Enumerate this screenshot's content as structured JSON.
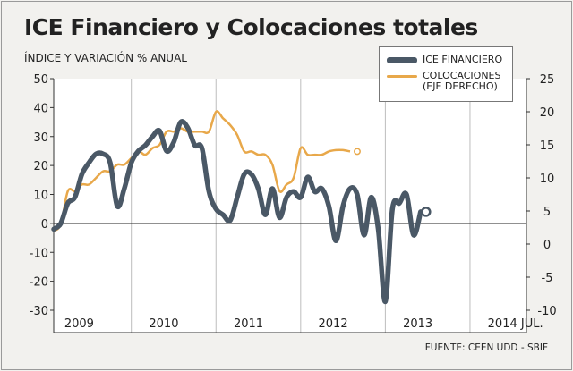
{
  "title": "ICE Financiero y Colocaciones totales",
  "subtitle": "ÍNDICE Y VARIACIÓN % ANUAL",
  "source": "FUENTE: CEEN UDD - SBIF",
  "colors": {
    "ice": "#4a5866",
    "colocaciones": "#e8a84a"
  },
  "legend": {
    "ice": "ICE FINANCIERO",
    "colocaciones": "COLOCACIONES\n(EJE DERECHO)"
  },
  "chart_data": {
    "type": "line",
    "title": "ICE Financiero y Colocaciones totales",
    "ylabel": "ÍNDICE Y VARIACIÓN % ANUAL",
    "ylim_left": [
      -30,
      50
    ],
    "ylim_right": [
      -10,
      25
    ],
    "yticks_left": [
      "50",
      "40",
      "30",
      "20",
      "10",
      "0",
      "-10",
      "-20",
      "-30"
    ],
    "yticks_right": [
      "25",
      "20",
      "15",
      "10",
      "5",
      "0",
      "-5",
      "-10"
    ],
    "x_tick_labels": [
      "2009",
      "2010",
      "2011",
      "2012",
      "2013",
      "2014 JUL."
    ],
    "x_range_months": [
      0,
      67
    ],
    "series": [
      {
        "name": "ICE FINANCIERO",
        "axis": "left",
        "points": [
          [
            0,
            -2
          ],
          [
            1,
            0
          ],
          [
            2,
            7
          ],
          [
            3,
            9
          ],
          [
            4,
            17
          ],
          [
            5,
            21
          ],
          [
            6,
            24
          ],
          [
            7,
            24
          ],
          [
            8,
            21
          ],
          [
            9,
            6
          ],
          [
            10,
            12
          ],
          [
            11,
            21
          ],
          [
            12,
            25
          ],
          [
            13,
            27
          ],
          [
            14,
            30
          ],
          [
            15,
            32
          ],
          [
            16,
            25
          ],
          [
            17,
            28
          ],
          [
            18,
            35
          ],
          [
            19,
            33
          ],
          [
            20,
            27
          ],
          [
            21,
            26
          ],
          [
            22,
            11
          ],
          [
            23,
            5
          ],
          [
            24,
            3
          ],
          [
            25,
            1
          ],
          [
            26,
            9
          ],
          [
            27,
            17
          ],
          [
            28,
            17
          ],
          [
            29,
            12
          ],
          [
            30,
            3
          ],
          [
            31,
            12
          ],
          [
            32,
            2
          ],
          [
            33,
            9
          ],
          [
            34,
            11
          ],
          [
            35,
            9
          ],
          [
            36,
            16
          ],
          [
            37,
            11
          ],
          [
            38,
            12
          ],
          [
            39,
            6
          ],
          [
            40,
            -6
          ],
          [
            41,
            6
          ],
          [
            42,
            12
          ],
          [
            43,
            10
          ],
          [
            44,
            -4
          ],
          [
            45,
            9
          ],
          [
            46,
            -2
          ],
          [
            47,
            -27
          ],
          [
            48,
            5
          ],
          [
            49,
            7
          ],
          [
            50,
            10
          ],
          [
            51,
            -4
          ],
          [
            52,
            4
          ]
        ]
      },
      {
        "name": "COLOCACIONES (EJE DERECHO)",
        "axis": "right",
        "points": [
          [
            0,
            2
          ],
          [
            1,
            3
          ],
          [
            2,
            8
          ],
          [
            3,
            8
          ],
          [
            4,
            9
          ],
          [
            5,
            9
          ],
          [
            6,
            10
          ],
          [
            7,
            11
          ],
          [
            8,
            11
          ],
          [
            9,
            12
          ],
          [
            10,
            12
          ],
          [
            11,
            13
          ],
          [
            12,
            14
          ],
          [
            13,
            13.5
          ],
          [
            14,
            14.5
          ],
          [
            15,
            15
          ],
          [
            16,
            17
          ],
          [
            17,
            17
          ],
          [
            18,
            17.5
          ],
          [
            19,
            17
          ],
          [
            20,
            17
          ],
          [
            21,
            17
          ],
          [
            22,
            17
          ],
          [
            23,
            20
          ],
          [
            24,
            19
          ],
          [
            25,
            18
          ],
          [
            26,
            16.5
          ],
          [
            27,
            14
          ],
          [
            28,
            14
          ],
          [
            29,
            13.5
          ],
          [
            30,
            13.5
          ],
          [
            31,
            12
          ],
          [
            32,
            8
          ],
          [
            33,
            9
          ],
          [
            34,
            10
          ],
          [
            35,
            14.5
          ],
          [
            36,
            13.5
          ],
          [
            37,
            13.5
          ],
          [
            38,
            13.5
          ],
          [
            39,
            14
          ],
          [
            40,
            14.2
          ],
          [
            41,
            14.2
          ],
          [
            42,
            14
          ]
        ]
      }
    ],
    "endpoint_markers": {
      "ICE FINANCIERO": [
        52,
        4
      ],
      "COLOCACIONES (EJE DERECHO)": [
        42,
        14
      ]
    },
    "grid": "vertical-year-lines",
    "legend_position": "top-right"
  }
}
